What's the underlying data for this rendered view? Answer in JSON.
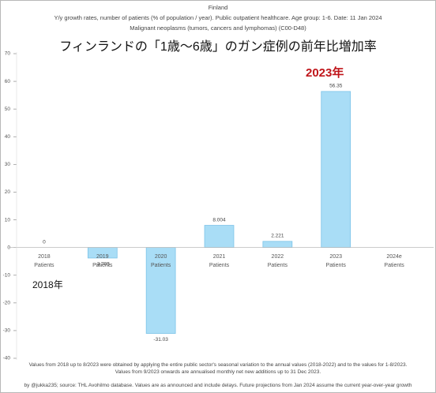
{
  "chart_data": {
    "type": "bar",
    "title": "Finland",
    "subtitle": "Y/y growth rates, number of patients (% of population / year).  Public outpatient healthcare. Age group: 1-6. Date: 11 Jan 2024",
    "subtitle2": "Malignant neoplasms (tumors, cancers and lymphomas) (C00-D48)",
    "japanese_title": "フィンランドの「1歳～6歳」のガン症例の前年比増加率",
    "annotations": [
      "2023年",
      "2018年"
    ],
    "footnotes": [
      "Values from 2018 up to 8/2023 were obtained by applying the entire public sector's seasonal variation to the annual values (2018-2022) and to the values for 1-8/2023.",
      "Values from 9/2023 onwards are annualised monthly net new additions up to 31 Dec 2023.",
      "by @jukka235; source: THL Avohilmo database. Values are as announced and include delays. Future projections from Jan 2024 assume the current year-over-year growth"
    ],
    "categories": [
      "2018\nPatients",
      "2019\nPatients",
      "2020\nPatients",
      "2021\nPatients",
      "2022\nPatients",
      "2023\nPatients",
      "2024e\nPatients"
    ],
    "values": [
      0,
      -3.795,
      -31.03,
      8.004,
      2.221,
      56.35,
      null
    ],
    "color": "#a9ddf6",
    "edge_color": "#7cc3e8",
    "ylim": [
      -40,
      70
    ],
    "yticks": [
      -40,
      -30,
      -20,
      -10,
      0,
      10,
      20,
      30,
      40,
      50,
      60,
      70
    ],
    "grid": false
  }
}
